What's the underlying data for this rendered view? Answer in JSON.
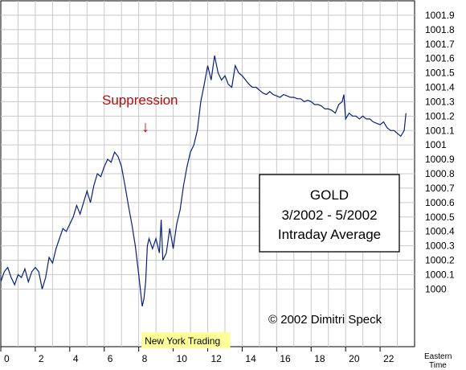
{
  "chart_data": {
    "type": "line",
    "title_lines": [
      "GOLD",
      "3/2002 - 5/2002",
      "Intraday Average"
    ],
    "copyright": "© 2002 Dimitri Speck",
    "annotation": "Suppression",
    "arrow_glyph": "↓",
    "highlight_label": "New York Trading",
    "xaxis_unit": [
      "Eastern",
      "Time"
    ],
    "xlim": [
      0,
      24
    ],
    "ylim": [
      999.6,
      1002.0
    ],
    "x_ticks": [
      0,
      2,
      4,
      6,
      8,
      10,
      12,
      14,
      16,
      18,
      20,
      22
    ],
    "x_tick_labels": [
      "0",
      "2",
      "4",
      "6",
      "8",
      "10",
      "12",
      "14",
      "16",
      "18",
      "20",
      "22"
    ],
    "y_ticks": [
      1000,
      1000.1,
      1000.2,
      1000.3,
      1000.4,
      1000.5,
      1000.6,
      1000.7,
      1000.8,
      1000.9,
      1001,
      1001.1,
      1001.2,
      1001.3,
      1001.4,
      1001.5,
      1001.6,
      1001.7,
      1001.8,
      1001.9
    ],
    "y_tick_labels": [
      "1000",
      "1000.1",
      "1000.2",
      "1000.3",
      "1000.4",
      "1000.5",
      "1000.6",
      "1000.7",
      "1000.8",
      "1000.9",
      "1001",
      "1001.1",
      "1001.2",
      "1001.3",
      "1001.4",
      "1001.5",
      "1001.6",
      "1001.7",
      "1001.8",
      "1001.9"
    ],
    "suppression_x": 8.3,
    "highlight_range": [
      8.3,
      13.4
    ],
    "grid": true,
    "colors": {
      "line": "#0a1f7a",
      "grid": "#c8c8c8",
      "annotation": "#b01010",
      "highlight": "#ffff99"
    },
    "series": [
      {
        "x": [
          0,
          0.2,
          0.4,
          0.6,
          0.8,
          1.0,
          1.2,
          1.4,
          1.6,
          1.8,
          2.0,
          2.2,
          2.4,
          2.6,
          2.8,
          3.0,
          3.2,
          3.4,
          3.6,
          3.8,
          4.0,
          4.2,
          4.4,
          4.6,
          4.8,
          5.0,
          5.2,
          5.4,
          5.6,
          5.8,
          6.0,
          6.2,
          6.4,
          6.6,
          6.8,
          7.0,
          7.2,
          7.4,
          7.6,
          7.8,
          8.0,
          8.2,
          8.3,
          8.4,
          8.5,
          8.6,
          8.8,
          9.0,
          9.2,
          9.3,
          9.4,
          9.6,
          9.8,
          10.0,
          10.2,
          10.4,
          10.6,
          10.8,
          11.0,
          11.2,
          11.4,
          11.6,
          11.8,
          12.0,
          12.2,
          12.4,
          12.6,
          12.8,
          13.0,
          13.2,
          13.4,
          13.6,
          13.8,
          14.0,
          14.2,
          14.4,
          14.6,
          14.8,
          15.0,
          15.2,
          15.4,
          15.6,
          15.8,
          16.0,
          16.2,
          16.4,
          16.6,
          16.8,
          17.0,
          17.2,
          17.4,
          17.6,
          17.8,
          18.0,
          18.2,
          18.4,
          18.6,
          18.8,
          19.0,
          19.2,
          19.4,
          19.6,
          19.8,
          19.9,
          20.0,
          20.2,
          20.4,
          20.6,
          20.8,
          21.0,
          21.2,
          21.4,
          21.6,
          21.8,
          22.0,
          22.2,
          22.4,
          22.6,
          22.8,
          23.0,
          23.2,
          23.4,
          23.5
        ],
        "y": [
          1000.05,
          1000.12,
          1000.15,
          1000.08,
          1000.03,
          1000.1,
          1000.08,
          1000.14,
          1000.05,
          1000.12,
          1000.15,
          1000.12,
          1000.0,
          1000.08,
          1000.22,
          1000.18,
          1000.28,
          1000.35,
          1000.42,
          1000.4,
          1000.45,
          1000.5,
          1000.58,
          1000.52,
          1000.6,
          1000.68,
          1000.6,
          1000.72,
          1000.8,
          1000.78,
          1000.85,
          1000.9,
          1000.88,
          1000.95,
          1000.92,
          1000.85,
          1000.72,
          1000.58,
          1000.45,
          1000.3,
          1000.1,
          999.88,
          999.93,
          1000.05,
          1000.3,
          1000.35,
          1000.28,
          1000.35,
          1000.25,
          1000.48,
          1000.2,
          1000.25,
          1000.42,
          1000.28,
          1000.45,
          1000.55,
          1000.72,
          1000.85,
          1000.95,
          1001.0,
          1001.1,
          1001.3,
          1001.42,
          1001.55,
          1001.45,
          1001.62,
          1001.5,
          1001.45,
          1001.48,
          1001.42,
          1001.4,
          1001.55,
          1001.5,
          1001.48,
          1001.45,
          1001.42,
          1001.4,
          1001.4,
          1001.38,
          1001.36,
          1001.35,
          1001.37,
          1001.35,
          1001.34,
          1001.33,
          1001.35,
          1001.34,
          1001.33,
          1001.33,
          1001.32,
          1001.32,
          1001.3,
          1001.31,
          1001.3,
          1001.28,
          1001.28,
          1001.27,
          1001.25,
          1001.25,
          1001.24,
          1001.22,
          1001.28,
          1001.3,
          1001.35,
          1001.18,
          1001.22,
          1001.2,
          1001.2,
          1001.18,
          1001.2,
          1001.18,
          1001.18,
          1001.16,
          1001.15,
          1001.14,
          1001.16,
          1001.12,
          1001.1,
          1001.1,
          1001.08,
          1001.06,
          1001.1,
          1001.22
        ]
      }
    ]
  }
}
